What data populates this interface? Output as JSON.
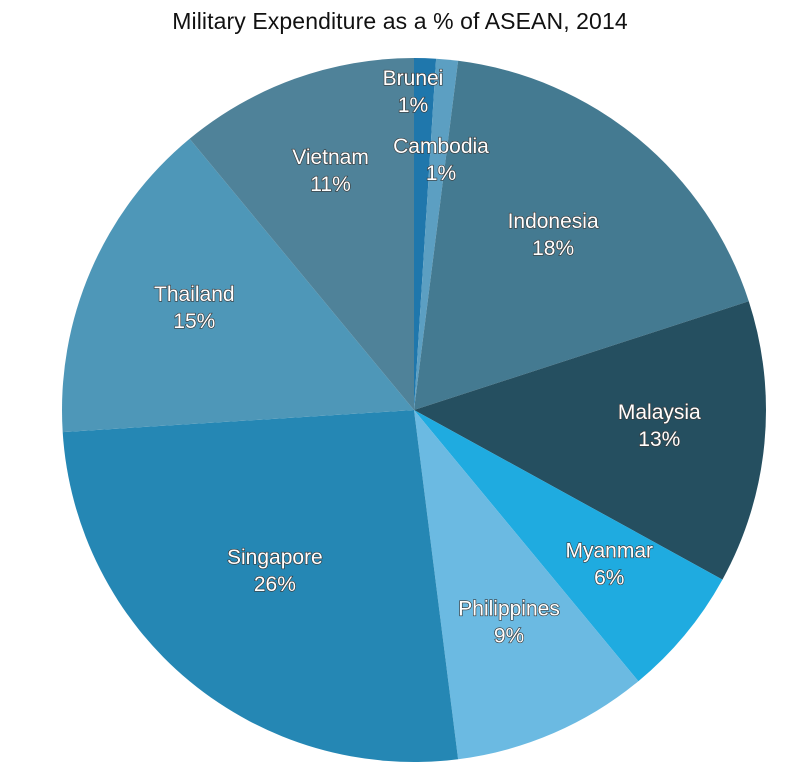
{
  "chart_data": {
    "type": "pie",
    "title": "Military Expenditure as a % of ASEAN, 2014",
    "slices": [
      {
        "label": "Brunei",
        "value": 1,
        "value_label": "1%",
        "color": "#1F77AC"
      },
      {
        "label": "Cambodia",
        "value": 1,
        "value_label": "1%",
        "color": "#5C9FC2"
      },
      {
        "label": "Indonesia",
        "value": 18,
        "value_label": "18%",
        "color": "#447A91"
      },
      {
        "label": "Malaysia",
        "value": 13,
        "value_label": "13%",
        "color": "#254F60"
      },
      {
        "label": "Myanmar",
        "value": 6,
        "value_label": "6%",
        "color": "#1FABE0"
      },
      {
        "label": "Philippines",
        "value": 9,
        "value_label": "9%",
        "color": "#6BBAE2"
      },
      {
        "label": "Singapore",
        "value": 26,
        "value_label": "26%",
        "color": "#2587B4"
      },
      {
        "label": "Thailand",
        "value": 15,
        "value_label": "15%",
        "color": "#4E97B8"
      },
      {
        "label": "Vietnam",
        "value": 11,
        "value_label": "11%",
        "color": "#4F8299"
      }
    ],
    "start_angle_deg": 0,
    "direction": "clockwise",
    "legend": "none"
  }
}
